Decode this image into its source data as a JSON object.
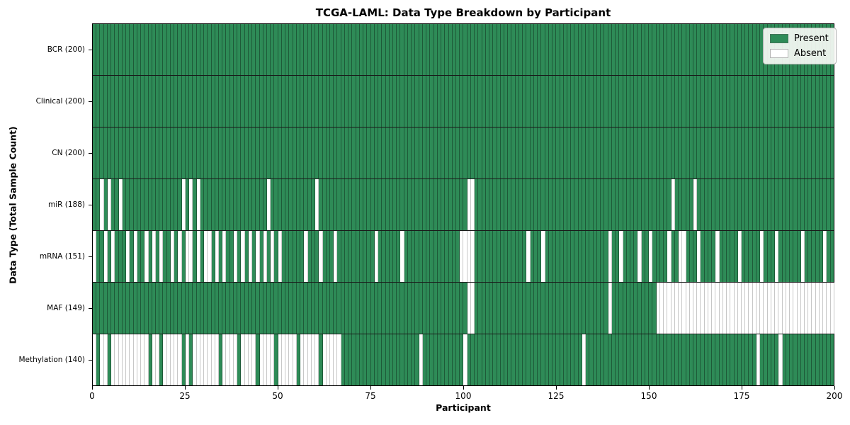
{
  "title": "TCGA-LAML: Data Type Breakdown by Participant",
  "xlabel": "Participant",
  "ylabel": "Data Type (Total Sample Count)",
  "legend": {
    "present_label": "Present",
    "absent_label": "Absent"
  },
  "colors": {
    "present": "#2e8b57",
    "absent": "#ffffff",
    "row_separator": "#1a1a1a",
    "plot_border": "#000000"
  },
  "x_ticks": [
    0,
    25,
    50,
    75,
    100,
    125,
    150,
    175,
    200
  ],
  "chart_data": {
    "type": "heatmap",
    "title": "TCGA-LAML: Data Type Breakdown by Participant",
    "xlabel": "Participant",
    "ylabel": "Data Type (Total Sample Count)",
    "x_range": [
      0,
      200
    ],
    "n_participants": 200,
    "legend_position": "upper right",
    "grid": false,
    "values_legend": {
      "present": 1,
      "absent": 0
    },
    "rows": [
      {
        "label": "BCR (200)",
        "data_type": "BCR",
        "present_count": 200,
        "absent_participants": []
      },
      {
        "label": "Clinical (200)",
        "data_type": "Clinical",
        "present_count": 200,
        "absent_participants": []
      },
      {
        "label": "CN (200)",
        "data_type": "CN",
        "present_count": 200,
        "absent_participants": []
      },
      {
        "label": "miR (188)",
        "data_type": "miR",
        "present_count": 188,
        "absent_participants": [
          2,
          4,
          7,
          24,
          26,
          28,
          47,
          60,
          101,
          102,
          156,
          162
        ]
      },
      {
        "label": "mRNA (151)",
        "data_type": "mRNA",
        "present_count": 151,
        "absent_participants": [
          0,
          3,
          5,
          9,
          11,
          14,
          16,
          18,
          21,
          23,
          25,
          26,
          28,
          30,
          31,
          33,
          35,
          38,
          40,
          42,
          44,
          46,
          48,
          50,
          57,
          61,
          65,
          76,
          83,
          99,
          100,
          101,
          102,
          117,
          121,
          139,
          142,
          147,
          150,
          155,
          158,
          159,
          163,
          168,
          174,
          180,
          184,
          191,
          197
        ]
      },
      {
        "label": "MAF (149)",
        "data_type": "MAF",
        "present_count": 149,
        "absent_participants": [
          101,
          102,
          139,
          152,
          153,
          154,
          155,
          156,
          157,
          158,
          159,
          160,
          161,
          162,
          163,
          164,
          165,
          166,
          167,
          168,
          169,
          170,
          171,
          172,
          173,
          174,
          175,
          176,
          177,
          178,
          179,
          180,
          181,
          182,
          183,
          184,
          185,
          186,
          187,
          188,
          189,
          190,
          191,
          192,
          193,
          194,
          195,
          196,
          197,
          198,
          199
        ]
      },
      {
        "label": "Methylation (140)",
        "data_type": "Methylation",
        "present_count": 140,
        "absent_participants": [
          0,
          2,
          3,
          5,
          6,
          7,
          8,
          9,
          10,
          11,
          12,
          13,
          14,
          16,
          17,
          19,
          20,
          21,
          22,
          23,
          25,
          27,
          28,
          29,
          30,
          31,
          32,
          33,
          35,
          36,
          37,
          38,
          40,
          41,
          42,
          43,
          45,
          46,
          47,
          48,
          50,
          51,
          52,
          53,
          54,
          56,
          57,
          58,
          59,
          60,
          62,
          63,
          64,
          65,
          66,
          88,
          100,
          132,
          179,
          185
        ]
      }
    ]
  }
}
